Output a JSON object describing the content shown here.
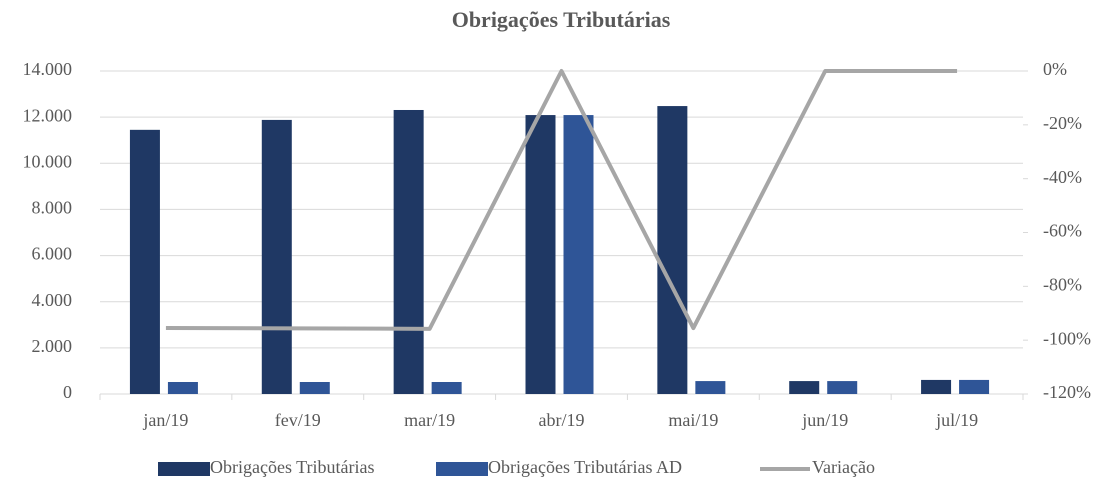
{
  "chart_data": {
    "type": "bar",
    "title": "Obrigações Tributárias",
    "categories": [
      "jan/19",
      "fev/19",
      "mar/19",
      "abr/19",
      "mai/19",
      "jun/19",
      "jul/19"
    ],
    "series": [
      {
        "name": "Obrigações Tributárias",
        "type": "bar",
        "color": "#1f3864",
        "values": [
          11450,
          11880,
          12310,
          12090,
          12480,
          560,
          610
        ]
      },
      {
        "name": "Obrigações Tributárias AD",
        "type": "bar",
        "color": "#2f5597",
        "values": [
          520,
          520,
          520,
          12090,
          560,
          560,
          610
        ]
      },
      {
        "name": "Variação",
        "type": "line",
        "axis": "y2",
        "color": "#a6a6a6",
        "values": [
          -95.5,
          -95.6,
          -95.8,
          0,
          -95.5,
          0,
          0
        ]
      }
    ],
    "ylim": [
      0,
      14000
    ],
    "yticks": [
      0,
      {
        "value": 2000,
        "label": "2.000"
      },
      {
        "value": 4000,
        "label": "4.000"
      },
      {
        "value": 6000,
        "label": "6.000"
      },
      {
        "value": 8000,
        "label": "8.000"
      },
      {
        "value": 10000,
        "label": "10.000"
      },
      {
        "value": 12000,
        "label": "12.000"
      },
      {
        "value": 14000,
        "label": "14.000"
      }
    ],
    "y2lim": [
      -120,
      0
    ],
    "y2ticks": [
      {
        "value": -120,
        "label": "-120%"
      },
      {
        "value": -100,
        "label": "-100%"
      },
      {
        "value": -80,
        "label": "-80%"
      },
      {
        "value": -60,
        "label": "-60%"
      },
      {
        "value": -40,
        "label": "-40%"
      },
      {
        "value": -20,
        "label": "-20%"
      },
      {
        "value": 0,
        "label": "0%"
      }
    ],
    "grid": true,
    "legend": "bottom"
  }
}
